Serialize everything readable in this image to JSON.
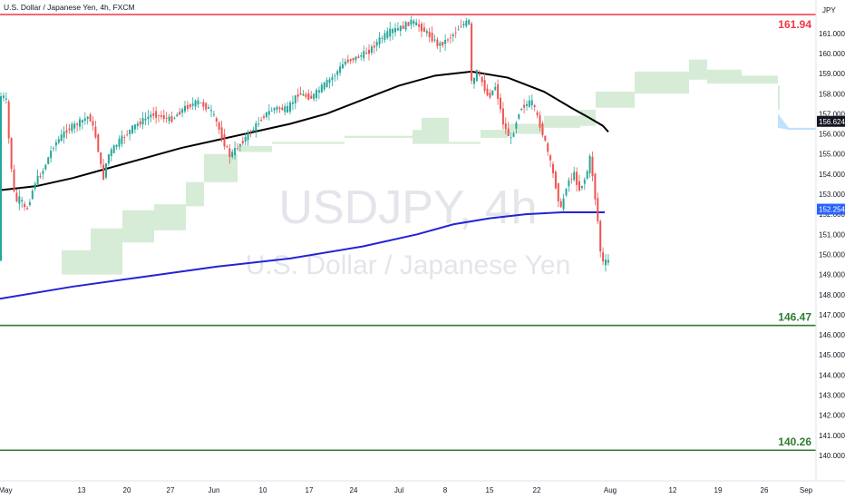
{
  "header": {
    "title": "U.S. Dollar / Japanese Yen, 4h, FXCM"
  },
  "watermark": {
    "symbol": "USDJPY, 4h",
    "name": "U.S. Dollar / Japanese Yen"
  },
  "currency": "JPY",
  "chart_data": {
    "type": "candlestick",
    "ylim": [
      140,
      161.94
    ],
    "y_ticks": [
      "140.000",
      "141.000",
      "142.000",
      "143.000",
      "144.000",
      "145.000",
      "146.000",
      "147.000",
      "148.000",
      "149.000",
      "150.000",
      "151.000",
      "152.000",
      "153.000",
      "154.000",
      "155.000",
      "156.000",
      "157.000",
      "158.000",
      "159.000",
      "160.000",
      "161.000"
    ],
    "x_ticks": [
      "May",
      "13",
      "20",
      "27",
      "Jun",
      "10",
      "17",
      "24",
      "Jul",
      "8",
      "15",
      "22",
      "Aug",
      "12",
      "19",
      "26",
      "Sep"
    ],
    "price_path": [
      [
        0,
        157.9
      ],
      [
        8,
        157.8
      ],
      [
        12,
        155.2
      ],
      [
        18,
        152.6
      ],
      [
        24,
        152.8
      ],
      [
        30,
        152.1
      ],
      [
        40,
        153.6
      ],
      [
        48,
        154.1
      ],
      [
        60,
        155.4
      ],
      [
        75,
        156.2
      ],
      [
        90,
        156.6
      ],
      [
        100,
        156.9
      ],
      [
        108,
        155.7
      ],
      [
        115,
        153.7
      ],
      [
        120,
        154.9
      ],
      [
        132,
        155.6
      ],
      [
        150,
        156.4
      ],
      [
        170,
        157.0
      ],
      [
        190,
        156.7
      ],
      [
        205,
        157.3
      ],
      [
        220,
        157.6
      ],
      [
        233,
        157.2
      ],
      [
        240,
        156.6
      ],
      [
        248,
        155.6
      ],
      [
        255,
        154.9
      ],
      [
        268,
        155.6
      ],
      [
        280,
        156.2
      ],
      [
        292,
        156.9
      ],
      [
        305,
        157.3
      ],
      [
        318,
        157.2
      ],
      [
        330,
        158.0
      ],
      [
        345,
        157.8
      ],
      [
        358,
        158.4
      ],
      [
        370,
        158.9
      ],
      [
        382,
        159.6
      ],
      [
        395,
        159.8
      ],
      [
        408,
        160.1
      ],
      [
        420,
        160.7
      ],
      [
        432,
        161.1
      ],
      [
        445,
        161.3
      ],
      [
        455,
        161.6
      ],
      [
        465,
        161.3
      ],
      [
        475,
        160.9
      ],
      [
        485,
        160.4
      ],
      [
        492,
        160.6
      ],
      [
        500,
        160.9
      ],
      [
        510,
        161.4
      ],
      [
        519,
        161.6
      ],
      [
        522,
        158.0
      ],
      [
        526,
        159.2
      ],
      [
        533,
        158.6
      ],
      [
        540,
        157.8
      ],
      [
        548,
        158.4
      ],
      [
        557,
        156.4
      ],
      [
        565,
        155.7
      ],
      [
        575,
        157.3
      ],
      [
        588,
        157.6
      ],
      [
        598,
        156.3
      ],
      [
        605,
        155.2
      ],
      [
        612,
        153.9
      ],
      [
        620,
        152.2
      ],
      [
        627,
        153.6
      ],
      [
        635,
        154.0
      ],
      [
        640,
        153.2
      ],
      [
        648,
        153.9
      ],
      [
        653,
        155.0
      ],
      [
        656,
        153.4
      ],
      [
        660,
        152.1
      ],
      [
        663,
        150.3
      ],
      [
        667,
        149.5
      ],
      [
        671,
        149.7
      ]
    ],
    "ma_black": [
      [
        0,
        153.2
      ],
      [
        40,
        153.4
      ],
      [
        80,
        153.8
      ],
      [
        120,
        154.3
      ],
      [
        160,
        154.8
      ],
      [
        200,
        155.3
      ],
      [
        240,
        155.7
      ],
      [
        280,
        156.1
      ],
      [
        320,
        156.5
      ],
      [
        360,
        157.0
      ],
      [
        400,
        157.7
      ],
      [
        440,
        158.4
      ],
      [
        480,
        158.9
      ],
      [
        520,
        159.1
      ],
      [
        560,
        158.8
      ],
      [
        600,
        158.1
      ],
      [
        630,
        157.3
      ],
      [
        650,
        156.8
      ],
      [
        665,
        156.4
      ],
      [
        671,
        156.1
      ]
    ],
    "ma_blue": [
      [
        0,
        147.8
      ],
      [
        80,
        148.4
      ],
      [
        160,
        148.9
      ],
      [
        240,
        149.4
      ],
      [
        320,
        149.8
      ],
      [
        400,
        150.4
      ],
      [
        460,
        151.0
      ],
      [
        500,
        151.5
      ],
      [
        540,
        151.8
      ],
      [
        580,
        152.0
      ],
      [
        620,
        152.1
      ],
      [
        667,
        152.1
      ]
    ],
    "cloud": [
      [
        68,
        149.0,
        150.2
      ],
      [
        100,
        149.0,
        151.3
      ],
      [
        135,
        150.6,
        152.2
      ],
      [
        170,
        151.2,
        152.5
      ],
      [
        205,
        152.4,
        153.6
      ],
      [
        225,
        153.6,
        155.0
      ],
      [
        262,
        155.1,
        155.4
      ],
      [
        300,
        155.5,
        155.6
      ],
      [
        380,
        155.8,
        155.9
      ],
      [
        455,
        155.5,
        156.2
      ],
      [
        465,
        155.5,
        156.8
      ],
      [
        495,
        155.5,
        155.6
      ],
      [
        530,
        155.8,
        156.2
      ],
      [
        560,
        156.0,
        156.5
      ],
      [
        600,
        156.3,
        156.9
      ],
      [
        640,
        156.4,
        157.2
      ],
      [
        657,
        157.3,
        158.1
      ],
      [
        700,
        158.0,
        159.1
      ],
      [
        760,
        158.7,
        159.7
      ],
      [
        780,
        158.5,
        159.2
      ],
      [
        818,
        158.5,
        158.9
      ],
      [
        858,
        157.2,
        158.4
      ]
    ],
    "cloud_red": [
      [
        858,
        156.3,
        157.0
      ],
      [
        870,
        156.2,
        156.3
      ],
      [
        900,
        156.2,
        156.3
      ]
    ],
    "levels": [
      {
        "value": 161.94,
        "label": "161.94",
        "color": "#f23645"
      },
      {
        "value": 146.47,
        "label": "146.47",
        "color": "#2e7d32"
      },
      {
        "value": 140.26,
        "label": "140.26",
        "color": "#2e7d32"
      }
    ],
    "price_tags": [
      {
        "value": 156.624,
        "label": "156.624",
        "color": "#131722"
      },
      {
        "value": 152.254,
        "label": "152.254",
        "color": "#2962ff"
      }
    ]
  }
}
